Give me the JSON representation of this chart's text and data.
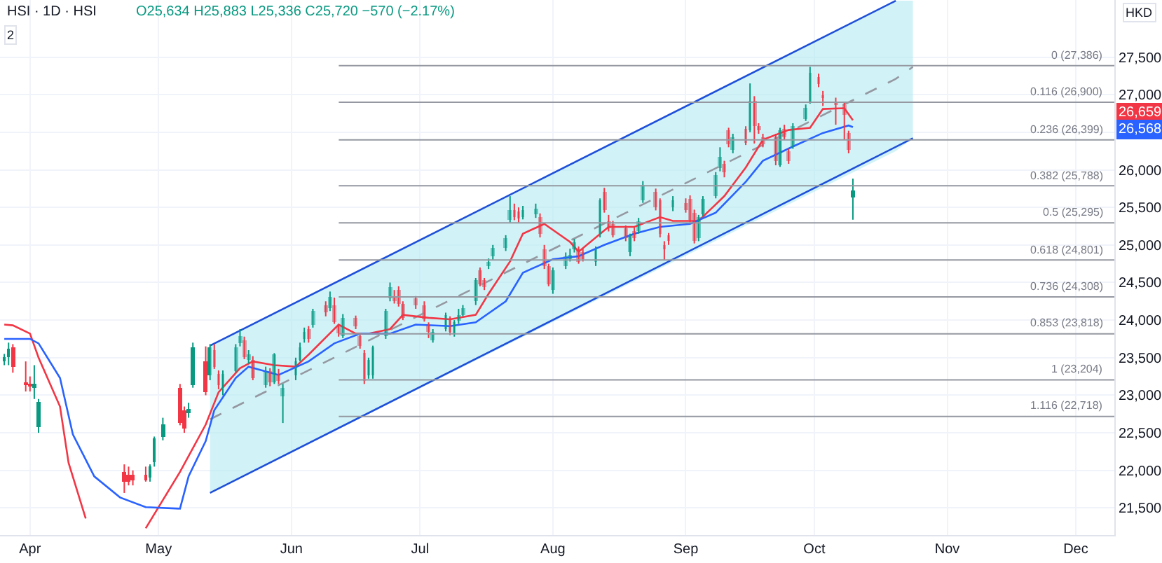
{
  "chart_data": {
    "type": "candlestick",
    "title": "HSI · 1D · HSI",
    "subtitle": "O25,634 H25,883 L25,336 C25,720 −570 (−2.17%)",
    "annotations": [
      "2",
      "HKD",
      "26,659",
      "26,568"
    ],
    "x": [
      "--03-26",
      "--03-27",
      "--03-28",
      "--03-31",
      "--04-01",
      "--04-02",
      "--04-03",
      "--04-23",
      "--04-24",
      "--04-25",
      "--04-28",
      "--04-29",
      "--04-30",
      "--05-02",
      "--05-06",
      "--05-07",
      "--05-08",
      "--05-09",
      "--05-12",
      "--05-13",
      "--05-14",
      "--05-15",
      "--05-16",
      "--05-19",
      "--05-20",
      "--05-21",
      "--05-22",
      "--05-23",
      "--05-26",
      "--05-27",
      "--05-28",
      "--05-29",
      "--05-30",
      "--06-02",
      "--06-03",
      "--06-04",
      "--06-05",
      "--06-06",
      "--06-09",
      "--06-10",
      "--06-11",
      "--06-12",
      "--06-13",
      "--06-16",
      "--06-17",
      "--06-18",
      "--06-19",
      "--06-20",
      "--06-23",
      "--06-24",
      "--06-25",
      "--06-26",
      "--06-27",
      "--06-30",
      "--07-02",
      "--07-03",
      "--07-04",
      "--07-07",
      "--07-08",
      "--07-09",
      "--07-10",
      "--07-11",
      "--07-14",
      "--07-15",
      "--07-16",
      "--07-17",
      "--07-18",
      "--07-21",
      "--07-22",
      "--07-23",
      "--07-24",
      "--07-25",
      "--07-28",
      "--07-29",
      "--07-30",
      "--07-31",
      "--08-01",
      "--08-04",
      "--08-05",
      "--08-06",
      "--08-07",
      "--08-08",
      "--08-11",
      "--08-12",
      "--08-13",
      "--08-14",
      "--08-15",
      "--08-18",
      "--08-19",
      "--08-20",
      "--08-21",
      "--08-22",
      "--08-25",
      "--08-26",
      "--08-27",
      "--08-28",
      "--08-29",
      "--09-01",
      "--09-02",
      "--09-03",
      "--09-04",
      "--09-05",
      "--09-08",
      "--09-09",
      "--09-10",
      "--09-11",
      "--09-12",
      "--09-15",
      "--09-16",
      "--09-17",
      "--09-18",
      "--09-19",
      "--09-22",
      "--09-23",
      "--09-24",
      "--09-25",
      "--09-26",
      "--09-29",
      "--09-30",
      "--10-02",
      "--10-03",
      "--10-06",
      "--10-08",
      "--10-09",
      "--10-10"
    ],
    "ohlc": [
      [
        23450,
        23550,
        23400,
        23500
      ],
      [
        23500,
        23700,
        23400,
        23620
      ],
      [
        23640,
        23680,
        23300,
        23380
      ],
      [
        23180,
        23450,
        23050,
        23130
      ],
      [
        23150,
        23250,
        23050,
        23120
      ],
      [
        23100,
        23400,
        22950,
        23150
      ],
      [
        22570,
        22950,
        22500,
        22910
      ],
      [
        21980,
        22080,
        21700,
        21850
      ],
      [
        21950,
        22050,
        21800,
        21850
      ],
      [
        21950,
        22000,
        21800,
        21860
      ],
      [
        21950,
        22050,
        21850,
        21870
      ],
      [
        21900,
        22080,
        21850,
        22050
      ],
      [
        22100,
        22450,
        22050,
        22420
      ],
      [
        22450,
        22700,
        22400,
        22610
      ],
      [
        23100,
        23150,
        22600,
        22630
      ],
      [
        22800,
        22850,
        22500,
        22550
      ],
      [
        22760,
        22900,
        22700,
        22820
      ],
      [
        23130,
        23700,
        23100,
        23640
      ],
      [
        23450,
        23650,
        23000,
        23040
      ],
      [
        23260,
        23680,
        23200,
        23640
      ],
      [
        23600,
        23680,
        23350,
        23380
      ],
      [
        23280,
        23330,
        23080,
        23130
      ],
      [
        23100,
        23330,
        23000,
        23280
      ],
      [
        23320,
        23680,
        23300,
        23640
      ],
      [
        23700,
        23880,
        23650,
        23790
      ],
      [
        23730,
        23780,
        23480,
        23510
      ],
      [
        23470,
        23600,
        23420,
        23540
      ],
      [
        23470,
        23520,
        23200,
        23230
      ],
      [
        23130,
        23380,
        23100,
        23320
      ],
      [
        23320,
        23360,
        23120,
        23170
      ],
      [
        23170,
        23560,
        23150,
        23540
      ],
      [
        23280,
        23350,
        23150,
        23190
      ],
      [
        22980,
        23150,
        22630,
        23100
      ],
      [
        23260,
        23500,
        23200,
        23450
      ],
      [
        23470,
        23700,
        23450,
        23640
      ],
      [
        23750,
        23900,
        23700,
        23840
      ],
      [
        23880,
        23920,
        23700,
        23750
      ],
      [
        23940,
        24150,
        23900,
        24120
      ],
      [
        24200,
        24250,
        24050,
        24100
      ],
      [
        24160,
        24380,
        24120,
        24310
      ],
      [
        24200,
        24300,
        23950,
        23970
      ],
      [
        23920,
        23950,
        23780,
        23820
      ],
      [
        23790,
        24080,
        23760,
        24030
      ],
      [
        24030,
        24060,
        23880,
        23920
      ],
      [
        23790,
        23830,
        23620,
        23660
      ],
      [
        23560,
        23600,
        23150,
        23190
      ],
      [
        23260,
        23500,
        23220,
        23470
      ],
      [
        23260,
        23660,
        23220,
        23640
      ],
      [
        23790,
        24150,
        23750,
        24120
      ],
      [
        24290,
        24500,
        24250,
        24440
      ],
      [
        24310,
        24400,
        24220,
        24250
      ],
      [
        24400,
        24450,
        24180,
        24220
      ],
      [
        24220,
        24250,
        24000,
        24030
      ],
      [
        24290,
        24320,
        24150,
        24200
      ],
      [
        24200,
        24250,
        23980,
        24010
      ],
      [
        23940,
        23970,
        23760,
        23840
      ],
      [
        23740,
        23880,
        23700,
        23840
      ],
      [
        23880,
        24100,
        23850,
        24070
      ],
      [
        24010,
        24050,
        23800,
        23840
      ],
      [
        23820,
        24000,
        23780,
        23970
      ],
      [
        24000,
        24150,
        23950,
        24070
      ],
      [
        24070,
        24200,
        24050,
        24160
      ],
      [
        24250,
        24560,
        24200,
        24530
      ],
      [
        24660,
        24700,
        24450,
        24480
      ],
      [
        24530,
        24560,
        24400,
        24440
      ],
      [
        24720,
        24820,
        24680,
        24780
      ],
      [
        24850,
        25000,
        24800,
        24960
      ],
      [
        24960,
        25130,
        24920,
        25090
      ],
      [
        25330,
        25650,
        25300,
        25470
      ],
      [
        25470,
        25550,
        25330,
        25370
      ],
      [
        25450,
        25500,
        25300,
        25350
      ],
      [
        25380,
        25520,
        25340,
        25470
      ],
      [
        25400,
        25550,
        25360,
        25480
      ],
      [
        25370,
        25420,
        25100,
        25150
      ],
      [
        24950,
        25000,
        24680,
        24720
      ],
      [
        24720,
        24750,
        24450,
        24480
      ],
      [
        24400,
        24700,
        24350,
        24660
      ],
      [
        24720,
        24900,
        24680,
        24850
      ],
      [
        24810,
        24950,
        24780,
        24870
      ],
      [
        24940,
        25080,
        24900,
        25040
      ],
      [
        24940,
        24980,
        24750,
        24780
      ],
      [
        24900,
        24950,
        24780,
        24810
      ],
      [
        24780,
        24980,
        24720,
        24940
      ],
      [
        25150,
        25620,
        25100,
        25600
      ],
      [
        25710,
        25760,
        25430,
        25470
      ],
      [
        25320,
        25400,
        25180,
        25220
      ],
      [
        25280,
        25320,
        25100,
        25130
      ],
      [
        25220,
        25260,
        25050,
        25090
      ],
      [
        24900,
        25150,
        24850,
        25130
      ],
      [
        25190,
        25230,
        25050,
        25090
      ],
      [
        25190,
        25360,
        25150,
        25320
      ],
      [
        25600,
        25850,
        25560,
        25800
      ],
      [
        25710,
        25750,
        25460,
        25500
      ],
      [
        25600,
        25620,
        25100,
        25150
      ],
      [
        25000,
        25050,
        24800,
        24940
      ],
      [
        25130,
        25160,
        25000,
        25060
      ],
      [
        25500,
        25650,
        25450,
        25600
      ],
      [
        25560,
        25620,
        25430,
        25470
      ],
      [
        25620,
        25660,
        25300,
        25330
      ],
      [
        25430,
        25470,
        25020,
        25060
      ],
      [
        25090,
        25400,
        25050,
        25370
      ],
      [
        25410,
        25650,
        25380,
        25620
      ],
      [
        25650,
        25970,
        25620,
        25930
      ],
      [
        26030,
        26300,
        25980,
        26170
      ],
      [
        26080,
        26120,
        25900,
        25970
      ],
      [
        26530,
        26560,
        26300,
        26340
      ],
      [
        26270,
        26480,
        26220,
        26440
      ],
      [
        26550,
        26580,
        26330,
        26360
      ],
      [
        26530,
        27150,
        26500,
        26920
      ],
      [
        26920,
        26980,
        26350,
        26590
      ],
      [
        26590,
        26620,
        26480,
        26530
      ],
      [
        26440,
        26480,
        26300,
        26340
      ],
      [
        26440,
        26480,
        26060,
        26120
      ],
      [
        26060,
        26560,
        26040,
        26530
      ],
      [
        26550,
        26600,
        26400,
        26440
      ],
      [
        26250,
        26280,
        26080,
        26120
      ],
      [
        26310,
        26620,
        26280,
        26590
      ],
      [
        26680,
        26870,
        26650,
        26830
      ],
      [
        26900,
        27370,
        26880,
        27300
      ],
      [
        27240,
        27280,
        27100,
        27150
      ],
      [
        27000,
        27050,
        26850,
        26960
      ],
      [
        26900,
        26960,
        26600,
        26870
      ],
      [
        26870,
        26900,
        26400,
        26740
      ],
      [
        26490,
        26520,
        26220,
        26270
      ],
      [
        25634,
        25883,
        25336,
        25720
      ]
    ],
    "series": [
      {
        "type": "line",
        "color": "#9598a1",
        "line_style": "dashed",
        "x": [
          "--05-13",
          "--10-20",
          "--10-24"
        ],
        "values": [
          22680,
          27210,
          27370
        ],
        "lower": [
          21700,
          26250,
          26420
        ],
        "upper": [
          23660,
          28250,
          28250
        ]
      },
      {
        "type": "line",
        "color": "#f23645",
        "x": [
          "--03-26",
          "--03-28",
          "--04-01",
          "--04-03",
          "--04-08",
          "--04-10",
          "--04-14",
          "--04-22",
          "--04-28",
          "--05-06",
          "--05-12",
          "--05-15",
          "--05-20",
          "--05-23",
          "--05-28",
          "--06-02",
          "--06-05",
          "--06-12",
          "--06-16",
          "--06-19",
          "--06-24",
          "--06-27",
          "--07-03",
          "--07-08",
          "--07-14",
          "--07-17",
          "--07-22",
          "--07-25",
          "--07-30",
          "--08-05",
          "--08-07",
          "--08-14",
          "--08-20",
          "--08-26",
          "--08-29",
          "--09-04",
          "--09-10",
          "--09-15",
          "--09-19",
          "--09-25",
          "--09-30",
          "--10-03",
          "--10-08",
          "--10-10"
        ],
        "values": [
          23940,
          23930,
          23820,
          23500,
          22850,
          22100,
          21360,
          null,
          21230,
          21980,
          22610,
          23040,
          23360,
          23450,
          23400,
          23380,
          23540,
          23940,
          23820,
          23820,
          23880,
          24070,
          24030,
          24010,
          24070,
          24350,
          24780,
          25150,
          25280,
          25040,
          24910,
          25240,
          25240,
          25370,
          25320,
          25320,
          25650,
          26030,
          26400,
          26530,
          26560,
          26810,
          26820,
          26659
        ]
      },
      {
        "type": "line",
        "color": "#2962ff",
        "x": [
          "--03-26",
          "--04-01",
          "--04-03",
          "--04-08",
          "--04-11",
          "--04-16",
          "--04-22",
          "--04-28",
          "--05-06",
          "--05-08",
          "--05-12",
          "--05-14",
          "--05-19",
          "--05-22",
          "--05-29",
          "--06-05",
          "--06-11",
          "--06-17",
          "--06-24",
          "--06-30",
          "--07-08",
          "--07-14",
          "--07-21",
          "--07-25",
          "--08-01",
          "--08-07",
          "--08-13",
          "--08-20",
          "--08-26",
          "--09-02",
          "--09-08",
          "--09-15",
          "--09-19",
          "--09-26",
          "--10-03",
          "--10-09",
          "--10-10"
        ],
        "values": [
          23750,
          23750,
          23690,
          23230,
          22480,
          21920,
          21640,
          21510,
          21490,
          21920,
          22390,
          22800,
          23230,
          23380,
          23270,
          23450,
          23690,
          23820,
          23820,
          23940,
          23920,
          23970,
          24250,
          24630,
          24810,
          24850,
          25000,
          25150,
          25240,
          25280,
          25430,
          25840,
          26120,
          26310,
          26490,
          26590,
          26568
        ]
      },
      {
        "type": "line",
        "color": "#1e4fd8",
        "x": [
          "--05-13",
          "--10-20"
        ],
        "values": [
          23660,
          28250
        ]
      },
      {
        "type": "line",
        "color": "#1e4fd8",
        "x": [
          "--05-13",
          "--10-24"
        ],
        "values": [
          21700,
          26420
        ]
      }
    ],
    "xlim": [
      "--03-25",
      "--12-10"
    ],
    "xticks": [
      {
        "value": "--04-01",
        "label": "Apr"
      },
      {
        "value": "--05-01",
        "label": "May"
      },
      {
        "value": "--06-01",
        "label": "Jun"
      },
      {
        "value": "--07-01",
        "label": "Jul"
      },
      {
        "value": "--08-01",
        "label": "Aug"
      },
      {
        "value": "--09-01",
        "label": "Sep"
      },
      {
        "value": "--10-01",
        "label": "Oct"
      },
      {
        "value": "--11-01",
        "label": "Nov"
      },
      {
        "value": "--12-01",
        "label": "Dec"
      }
    ],
    "ylim": [
      21140,
      28260
    ],
    "yticks": [
      {
        "value": 21500,
        "label": "21,500"
      },
      {
        "value": 22000,
        "label": "22,000"
      },
      {
        "value": 22500,
        "label": "22,500"
      },
      {
        "value": 23000,
        "label": "23,000"
      },
      {
        "value": 23500,
        "label": "23,500"
      },
      {
        "value": 24000,
        "label": "24,000"
      },
      {
        "value": 24500,
        "label": "24,500"
      },
      {
        "value": 25000,
        "label": "25,000"
      },
      {
        "value": 25500,
        "label": "25,500"
      },
      {
        "value": 26000,
        "label": "26,000"
      },
      {
        "value": 26500,
        "label": null
      },
      {
        "value": 27000,
        "label": "27,000"
      },
      {
        "value": 27500,
        "label": "27,500"
      }
    ],
    "ref_lines": [
      {
        "axis": "y",
        "value": 27386,
        "label": "0 (27,386)",
        "color": "#9598a1"
      },
      {
        "axis": "y",
        "value": 26900,
        "label": "0.116 (26,900)",
        "color": "#9598a1"
      },
      {
        "axis": "y",
        "value": 26399,
        "label": "0.236 (26,399)",
        "color": "#9598a1"
      },
      {
        "axis": "y",
        "value": 25788,
        "label": "0.382 (25,788)",
        "color": "#9598a1"
      },
      {
        "axis": "y",
        "value": 25295,
        "label": "0.5 (25,295)",
        "color": "#9598a1"
      },
      {
        "axis": "y",
        "value": 24801,
        "label": "0.618 (24,801)",
        "color": "#9598a1"
      },
      {
        "axis": "y",
        "value": 24308,
        "label": "0.736 (24,308)",
        "color": "#9598a1"
      },
      {
        "axis": "y",
        "value": 23818,
        "label": "0.853 (23,818)",
        "color": "#9598a1"
      },
      {
        "axis": "y",
        "value": 23204,
        "label": "1 (23,204)",
        "color": "#9598a1"
      },
      {
        "axis": "y",
        "value": 22718,
        "label": "1.116 (22,718)",
        "color": "#9598a1"
      }
    ],
    "grid": true
  }
}
